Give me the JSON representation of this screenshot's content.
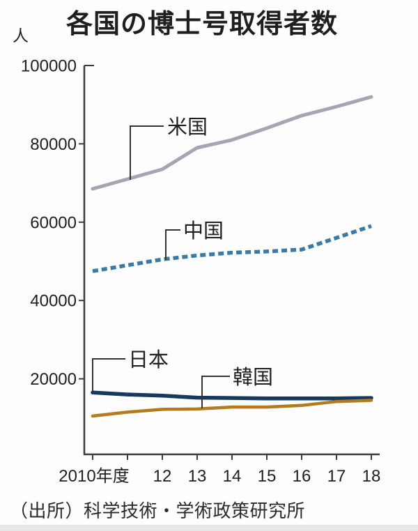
{
  "header": {
    "unit": "人",
    "title": "各国の博士号取得者数"
  },
  "footer": {
    "source": "（出所）科学技術・学術政策研究所"
  },
  "chart_data": {
    "type": "line",
    "title": "各国の博士号取得者数",
    "unit": "人",
    "x": [
      2010,
      2011,
      2012,
      2013,
      2014,
      2015,
      2016,
      2017,
      2018
    ],
    "x_tick_labels": [
      "2010年度",
      "",
      "12",
      "13",
      "14",
      "15",
      "16",
      "17",
      "18"
    ],
    "y_ticks": [
      20000,
      40000,
      60000,
      80000,
      100000
    ],
    "ylim": [
      0,
      100000
    ],
    "grid": false,
    "legend_position": "inline-annotations",
    "axis_color": "#3a3a3a",
    "series": [
      {
        "name": "米国",
        "key": "us",
        "color": "#a9a4b4",
        "style": "solid",
        "values": [
          68500,
          71000,
          73500,
          79000,
          81000,
          84000,
          87200,
          89500,
          92000
        ]
      },
      {
        "name": "中国",
        "key": "china",
        "color": "#3a7aa5",
        "style": "dashed",
        "values": [
          47500,
          49000,
          50500,
          51500,
          52200,
          52500,
          53000,
          56000,
          59000
        ]
      },
      {
        "name": "日本",
        "key": "japan",
        "color": "#17395e",
        "style": "solid",
        "values": [
          16500,
          16000,
          15700,
          15200,
          15100,
          15000,
          15000,
          15000,
          15100
        ]
      },
      {
        "name": "韓国",
        "key": "korea",
        "color": "#b47a1e",
        "style": "solid",
        "values": [
          10500,
          11500,
          12200,
          12300,
          12800,
          12800,
          13200,
          14200,
          14500
        ]
      }
    ],
    "source": "（出所）科学技術・学術政策研究所"
  }
}
